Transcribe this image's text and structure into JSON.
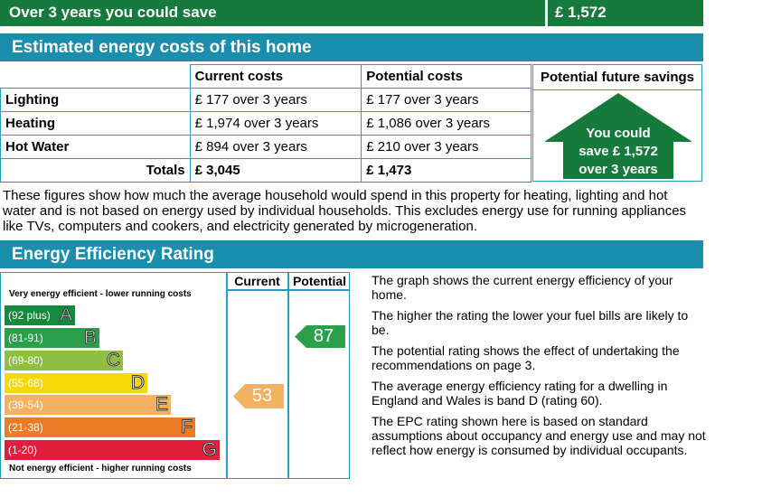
{
  "savings_bar": {
    "label": "Over 3 years you could save",
    "value": "£ 1,572"
  },
  "energy_costs": {
    "title": "Estimated energy costs of this home",
    "headers": {
      "current": "Current costs",
      "potential": "Potential costs",
      "future": "Potential future savings"
    },
    "rows": [
      {
        "label": "Lighting",
        "current": "£ 177 over 3 years",
        "potential": "£ 177 over 3 years"
      },
      {
        "label": "Heating",
        "current": "£ 1,974 over 3 years",
        "potential": "£ 1,086 over 3 years"
      },
      {
        "label": "Hot Water",
        "current": "£ 894 over 3 years",
        "potential": "£ 210 over 3 years"
      }
    ],
    "totals": {
      "label": "Totals",
      "current": "£ 3,045",
      "potential": "£ 1,473"
    },
    "savings_house": {
      "line1": "You could",
      "line2": "save £ 1,572",
      "line3": "over 3 years"
    },
    "colors": {
      "house": "#157a3c",
      "table_border": "#2d9bbb"
    }
  },
  "explanation": "These figures show how much the average household would spend in this property for heating, lighting and hot water and is not based on energy used by individual households. This excludes energy use for running appliances like TVs, computers and cookers, and electricity generated by microgeneration.",
  "efficiency": {
    "title": "Energy Efficiency Rating",
    "top_label": "Very energy efficient - lower running costs",
    "bottom_label": "Not energy efficient - higher running costs",
    "col_current": "Current",
    "col_potential": "Potential",
    "bands": [
      {
        "range": "(92 plus)",
        "letter": "A",
        "color": "#138a3e"
      },
      {
        "range": "(81-91)",
        "letter": "B",
        "color": "#2ba04a"
      },
      {
        "range": "(69-80)",
        "letter": "C",
        "color": "#8dc041"
      },
      {
        "range": "(55-68)",
        "letter": "D",
        "color": "#f5d80a"
      },
      {
        "range": "(39-54)",
        "letter": "E",
        "color": "#f3b162"
      },
      {
        "range": "(21-38)",
        "letter": "F",
        "color": "#eb7b24"
      },
      {
        "range": "(1-20)",
        "letter": "G",
        "color": "#e31d3c"
      }
    ],
    "current": {
      "value": "53",
      "band": "E",
      "color": "#f3b162"
    },
    "potential": {
      "value": "87",
      "band": "B",
      "color": "#2ba04a"
    },
    "info": [
      "The graph shows the current energy efficiency of your home.",
      "The higher the rating the lower your fuel bills are likely to be.",
      "The potential rating shows the effect of undertaking the recommendations on page 3.",
      "The average energy efficiency rating for a dwelling in England and Wales is band D (rating 60).",
      "The EPC rating shown here is based on standard assumptions about occupancy and energy use and may not reflect how energy is consumed by individual occupants."
    ]
  }
}
